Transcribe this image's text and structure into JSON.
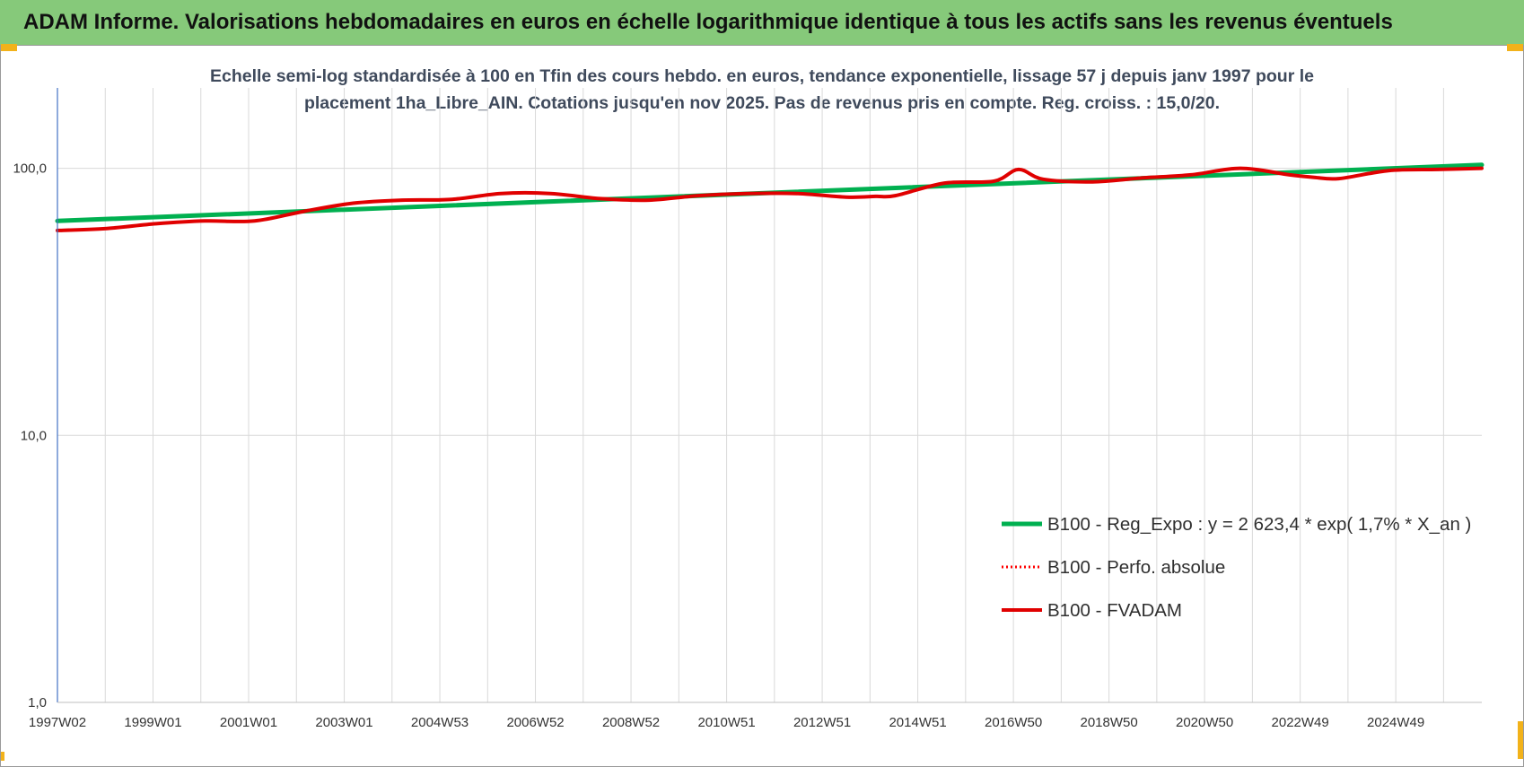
{
  "header": {
    "title": "ADAM Informe. Valorisations hebdomadaires en euros en échelle logarithmique identique à tous les actifs sans les revenus éventuels"
  },
  "colors": {
    "banner": "#86c97a",
    "trend": "#00b050",
    "perf": "#ff0000",
    "fvadam": "#e00000",
    "corner": "#f2b21a"
  },
  "chart_data": {
    "type": "line",
    "subtitle_lines": [
      "Echelle semi-log standardisée à 100 en Tfin des cours hebdo. en euros, tendance exponentielle, lissage 57 j depuis janv 1997 pour le",
      "placement 1ha_Libre_AIN. Cotations jusqu'en nov 2025. Pas de revenus pris en compte. Reg. croiss. : 15,0/20."
    ],
    "y_scale": "log",
    "ylim": [
      1,
      200
    ],
    "y_ticks": [
      {
        "value": 1,
        "label": "1,0"
      },
      {
        "value": 10,
        "label": "10,0"
      },
      {
        "value": 100,
        "label": "100,0"
      }
    ],
    "x_ticks": [
      "1997W02",
      "1999W01",
      "2001W01",
      "2003W01",
      "2004W53",
      "2006W52",
      "2008W52",
      "2010W51",
      "2012W51",
      "2014W51",
      "2016W50",
      "2018W50",
      "2020W50",
      "2022W49",
      "2024W49"
    ],
    "xlim": [
      1997.0,
      2025.9
    ],
    "grid": true,
    "legend_position": "bottom-right",
    "series": [
      {
        "name": "B100 - Reg_Expo : y = 2 623,4 * exp( 1,7% *  X_an )",
        "style": "solid-green",
        "x": [
          1997.0,
          2025.9
        ],
        "y": [
          63.5,
          103
        ]
      },
      {
        "name": "B100 - Perfo. absolue",
        "style": "dotted-red",
        "x": [
          1997.0,
          1998.0,
          1999.0,
          2000.0,
          2001.0,
          2002.0,
          2003.0,
          2004.0,
          2005.0,
          2006.0,
          2007.0,
          2008.0,
          2009.0,
          2010.0,
          2011.0,
          2012.0,
          2013.0,
          2013.6,
          2014.0,
          2015.0,
          2016.0,
          2016.5,
          2017.0,
          2018.0,
          2019.0,
          2020.0,
          2021.0,
          2022.0,
          2022.5,
          2023.0,
          2024.0,
          2025.0,
          2025.9
        ],
        "y": [
          58.5,
          59.5,
          62,
          63.5,
          63.5,
          69,
          74,
          76,
          76.5,
          80.5,
          80.5,
          77,
          76,
          79,
          80.5,
          80.5,
          78,
          78.5,
          79,
          88,
          89.5,
          99,
          91,
          89,
          92,
          94.5,
          100,
          94.5,
          92.5,
          91.5,
          98,
          99,
          100
        ]
      },
      {
        "name": "B100 - FVADAM",
        "style": "solid-red",
        "x": [
          1997.0,
          1998.0,
          1999.0,
          2000.0,
          2001.0,
          2002.0,
          2003.0,
          2004.0,
          2005.0,
          2006.0,
          2007.0,
          2008.0,
          2009.0,
          2010.0,
          2011.0,
          2012.0,
          2013.0,
          2013.6,
          2014.0,
          2015.0,
          2016.0,
          2016.5,
          2017.0,
          2018.0,
          2019.0,
          2020.0,
          2021.0,
          2022.0,
          2022.5,
          2023.0,
          2024.0,
          2025.0,
          2025.9
        ],
        "y": [
          58.5,
          59.5,
          62,
          63.5,
          63.5,
          69,
          74,
          76,
          76.5,
          80.5,
          80.5,
          77,
          76,
          79,
          80.5,
          80.5,
          78,
          78.5,
          79,
          88,
          89.5,
          99,
          91,
          89,
          92,
          94.5,
          100,
          94.5,
          92.5,
          91.5,
          98,
          99,
          100
        ]
      }
    ]
  }
}
